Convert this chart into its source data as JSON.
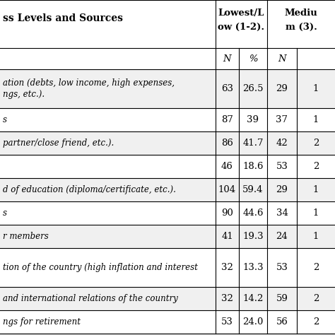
{
  "title": "ss Levels and Sources",
  "col_header1_line1": "Lowest/L",
  "col_header1_line2": "ow (1-2).",
  "col_header2_line1": "Mediu",
  "col_header2_line2": "m (3).",
  "sub_headers": [
    "N",
    "%",
    "N",
    ""
  ],
  "rows": [
    {
      "label": "ation (debts, low income, high expenses,\nngs, etc.).",
      "vals": [
        "63",
        "26.5",
        "29",
        "1"
      ],
      "tall": true
    },
    {
      "label": "s",
      "vals": [
        "87",
        "39",
        "37",
        "1"
      ],
      "tall": false
    },
    {
      "label": "partner/close friend, etc.).",
      "vals": [
        "86",
        "41.7",
        "42",
        "2"
      ],
      "tall": false
    },
    {
      "label": "",
      "vals": [
        "46",
        "18.6",
        "53",
        "2"
      ],
      "tall": false
    },
    {
      "label": "d of education (diploma/certificate, etc.).",
      "vals": [
        "104",
        "59.4",
        "29",
        "1"
      ],
      "tall": false
    },
    {
      "label": "s",
      "vals": [
        "90",
        "44.6",
        "34",
        "1"
      ],
      "tall": false
    },
    {
      "label": "r members",
      "vals": [
        "41",
        "19.3",
        "24",
        "1"
      ],
      "tall": false
    },
    {
      "label": "tion of the country (high inflation and interest",
      "vals": [
        "32",
        "13.3",
        "53",
        "2"
      ],
      "tall": true
    },
    {
      "label": "and international relations of the country",
      "vals": [
        "32",
        "14.2",
        "59",
        "2"
      ],
      "tall": false
    },
    {
      "label": "ngs for retirement",
      "vals": [
        "53",
        "24.0",
        "56",
        "2"
      ],
      "tall": false
    }
  ],
  "bg_color": "#ffffff",
  "row_bg_light": "#f0f0f0",
  "row_bg_white": "#ffffff",
  "border_color": "#000000",
  "text_color": "#000000"
}
